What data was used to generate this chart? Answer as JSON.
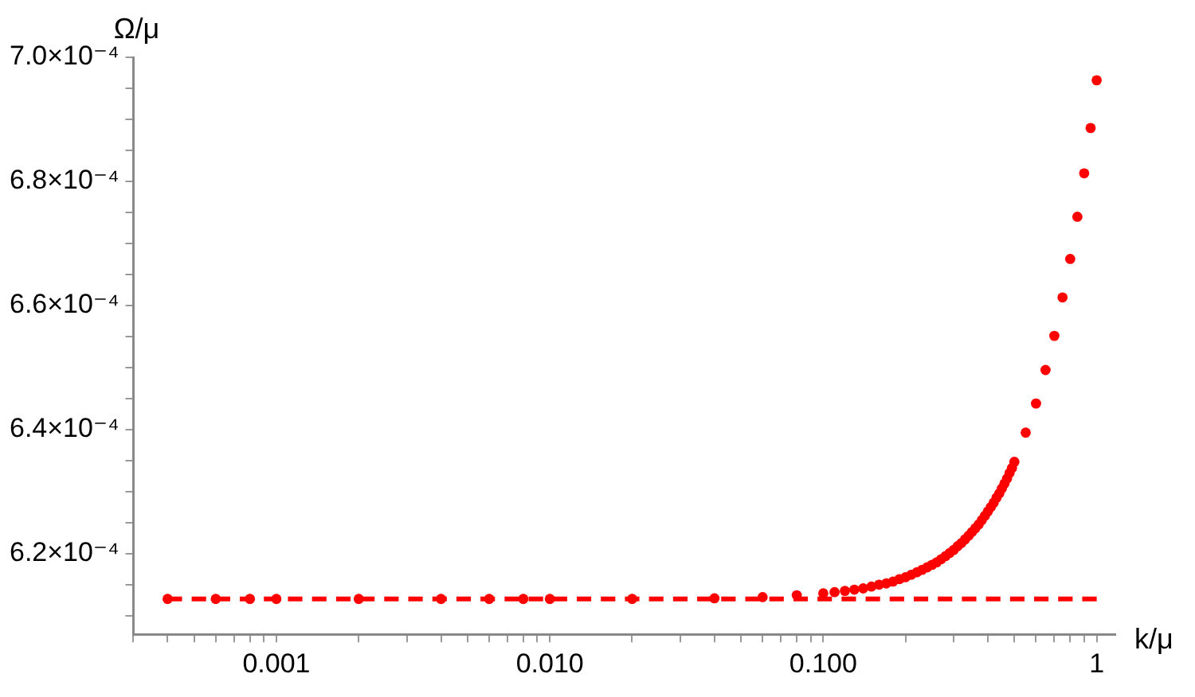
{
  "chart_data": {
    "type": "scatter",
    "xlabel": "k/μ",
    "ylabel": "Ω/μ",
    "log": "x",
    "grid": false,
    "marker": "circle",
    "xlim": [
      0.0003,
      1.17
    ],
    "ylim": [
      0.000607,
      0.0007
    ],
    "xticks": [
      {
        "value": 0.0003,
        "label": null
      },
      {
        "value": 0.0004,
        "label": null
      },
      {
        "value": 0.0005,
        "label": null
      },
      {
        "value": 0.0006,
        "label": null
      },
      {
        "value": 0.0007,
        "label": null
      },
      {
        "value": 0.0008,
        "label": null
      },
      {
        "value": 0.0009,
        "label": null
      },
      {
        "value": 0.001,
        "label": "0.001"
      },
      {
        "value": 0.002,
        "label": null
      },
      {
        "value": 0.003,
        "label": null
      },
      {
        "value": 0.004,
        "label": null
      },
      {
        "value": 0.005,
        "label": null
      },
      {
        "value": 0.006,
        "label": null
      },
      {
        "value": 0.007,
        "label": null
      },
      {
        "value": 0.008,
        "label": null
      },
      {
        "value": 0.009,
        "label": null
      },
      {
        "value": 0.01,
        "label": "0.010"
      },
      {
        "value": 0.02,
        "label": null
      },
      {
        "value": 0.03,
        "label": null
      },
      {
        "value": 0.04,
        "label": null
      },
      {
        "value": 0.05,
        "label": null
      },
      {
        "value": 0.06,
        "label": null
      },
      {
        "value": 0.07,
        "label": null
      },
      {
        "value": 0.08,
        "label": null
      },
      {
        "value": 0.09,
        "label": null
      },
      {
        "value": 0.1,
        "label": "0.100"
      },
      {
        "value": 0.2,
        "label": null
      },
      {
        "value": 0.3,
        "label": null
      },
      {
        "value": 0.4,
        "label": null
      },
      {
        "value": 0.5,
        "label": null
      },
      {
        "value": 0.6,
        "label": null
      },
      {
        "value": 0.7,
        "label": null
      },
      {
        "value": 0.8,
        "label": null
      },
      {
        "value": 0.9,
        "label": null
      },
      {
        "value": 1,
        "label": "1"
      }
    ],
    "yticks": [
      {
        "value": 0.00061,
        "label": null
      },
      {
        "value": 0.000615,
        "label": null
      },
      {
        "value": 0.00062,
        "label": "6.2×10⁻⁴"
      },
      {
        "value": 0.000625,
        "label": null
      },
      {
        "value": 0.00063,
        "label": null
      },
      {
        "value": 0.000635,
        "label": null
      },
      {
        "value": 0.00064,
        "label": "6.4×10⁻⁴"
      },
      {
        "value": 0.000645,
        "label": null
      },
      {
        "value": 0.00065,
        "label": null
      },
      {
        "value": 0.000655,
        "label": null
      },
      {
        "value": 0.00066,
        "label": "6.6×10⁻⁴"
      },
      {
        "value": 0.000665,
        "label": null
      },
      {
        "value": 0.00067,
        "label": null
      },
      {
        "value": 0.000675,
        "label": null
      },
      {
        "value": 0.00068,
        "label": "6.8×10⁻⁴"
      },
      {
        "value": 0.000685,
        "label": null
      },
      {
        "value": 0.00069,
        "label": null
      },
      {
        "value": 0.000695,
        "label": null
      },
      {
        "value": 0.0007,
        "label": "7.0×10⁻⁴"
      }
    ],
    "series": [
      {
        "type": "line",
        "color": "#ff0000",
        "marker": "none",
        "line_style": "dashed",
        "x": [
          0.0004,
          1
        ],
        "values": [
          0.0006127,
          0.0006127
        ]
      },
      {
        "color": "#ff0000",
        "x": [
          0.0004,
          0.0006,
          0.0008,
          0.001,
          0.002,
          0.004,
          0.006,
          0.008,
          0.01,
          0.02,
          0.04,
          0.06,
          0.08,
          0.1,
          0.11,
          0.12,
          0.13,
          0.14,
          0.15,
          0.16,
          0.17,
          0.18,
          0.19,
          0.2,
          0.21,
          0.22,
          0.23,
          0.24,
          0.25,
          0.26,
          0.27,
          0.28,
          0.29,
          0.3,
          0.31,
          0.32,
          0.33,
          0.34,
          0.35,
          0.36,
          0.37,
          0.38,
          0.39,
          0.4,
          0.41,
          0.42,
          0.43,
          0.44,
          0.45,
          0.46,
          0.47,
          0.48,
          0.49,
          0.5,
          0.55,
          0.6,
          0.65,
          0.7,
          0.75,
          0.8,
          0.85,
          0.9,
          0.95,
          1
        ],
        "values": [
          0.0006127,
          0.0006127,
          0.0006127,
          0.0006127,
          0.0006127,
          0.0006127,
          0.0006127,
          0.0006127,
          0.0006127,
          0.0006127,
          0.0006128,
          0.000613,
          0.0006133,
          0.0006136,
          0.0006138,
          0.000614,
          0.0006142,
          0.0006144,
          0.0006147,
          0.000615,
          0.0006152,
          0.0006155,
          0.0006159,
          0.0006162,
          0.0006166,
          0.000617,
          0.0006174,
          0.0006178,
          0.0006182,
          0.0006186,
          0.0006191,
          0.0006196,
          0.0006201,
          0.0006206,
          0.0006212,
          0.0006217,
          0.0006223,
          0.0006229,
          0.0006235,
          0.0006241,
          0.0006247,
          0.0006254,
          0.0006261,
          0.0006268,
          0.0006275,
          0.0006282,
          0.000629,
          0.0006297,
          0.0006305,
          0.0006313,
          0.0006321,
          0.000633,
          0.0006338,
          0.0006348,
          0.0006395,
          0.0006442,
          0.0006496,
          0.0006551,
          0.0006613,
          0.0006675,
          0.0006743,
          0.0006813,
          0.0006886,
          0.0006963
        ]
      }
    ]
  }
}
